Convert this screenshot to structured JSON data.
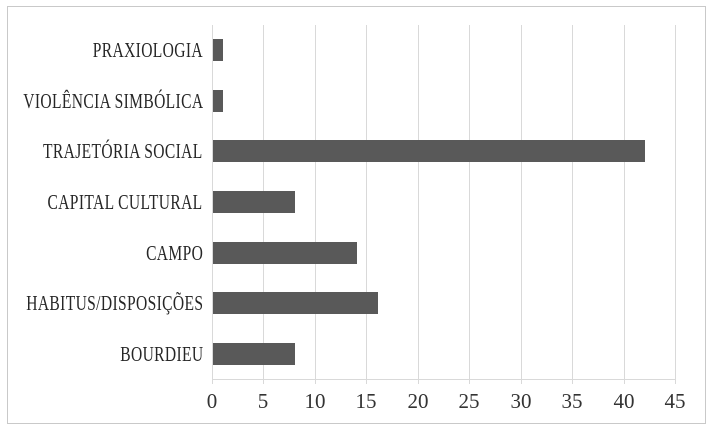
{
  "chart_data": {
    "type": "bar",
    "orientation": "horizontal",
    "title": "",
    "xlabel": "",
    "ylabel": "",
    "categories": [
      "PRAXIOLOGIA",
      "VIOLÊNCIA SIMBÓLICA",
      "TRAJETÓRIA SOCIAL",
      "CAPITAL CULTURAL",
      "CAMPO",
      "HABITUS/DISPOSIÇÕES",
      "BOURDIEU"
    ],
    "values": [
      1,
      1,
      42,
      8,
      14,
      16,
      8
    ],
    "xlim": [
      0,
      45
    ],
    "x_ticks": [
      "0",
      "5",
      "10",
      "15",
      "20",
      "25",
      "30",
      "35",
      "40",
      "45"
    ],
    "grid": "vertical-gridlines-on",
    "legend": "none",
    "colors": {
      "bar_fill": "#595959",
      "gridline": "#d9d9d9",
      "axis_line": "#d9d9d9",
      "tick_mark": "#d9d9d9",
      "category_label_text": "#262626",
      "tick_label_text": "#333333",
      "chart_border": "#c9c9c9",
      "background": "#ffffff"
    }
  }
}
